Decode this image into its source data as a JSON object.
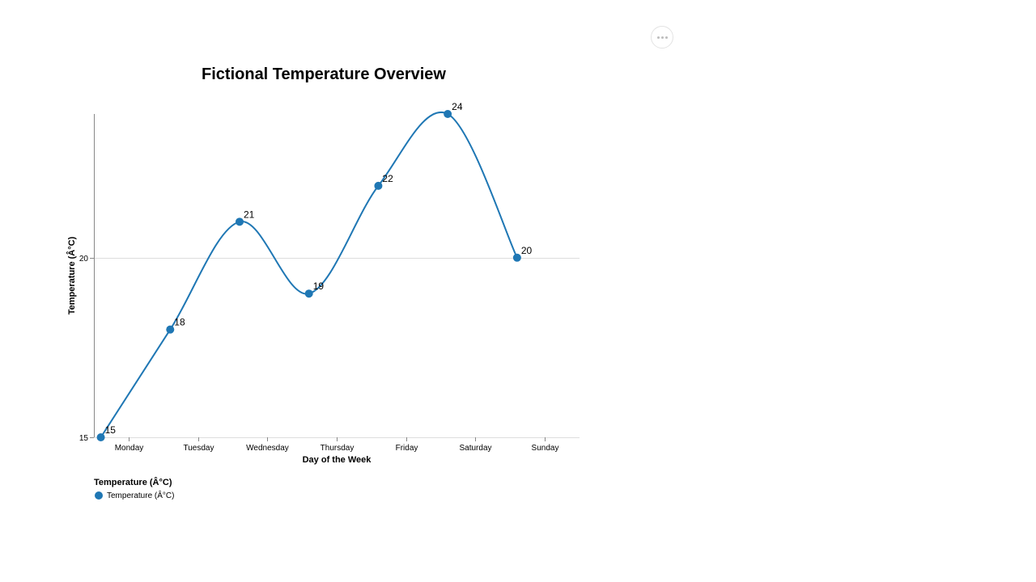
{
  "menu": {
    "icon": "more-horizontal-icon"
  },
  "chart_data": {
    "type": "line",
    "title": "Fictional Temperature Overview",
    "xlabel": "Day of the Week",
    "ylabel": "Temperature (Â°C)",
    "categories": [
      "Monday",
      "Tuesday",
      "Wednesday",
      "Thursday",
      "Friday",
      "Saturday",
      "Sunday"
    ],
    "series": [
      {
        "name": "Temperature (Â°C)",
        "values": [
          15,
          18,
          21,
          19,
          22,
          24,
          20
        ],
        "color": "#1f77b4"
      }
    ],
    "y_ticks": [
      15,
      20
    ],
    "ylim": [
      15,
      24
    ],
    "grid": true,
    "interpolation": "smooth",
    "legend": {
      "title": "Temperature (Â°C)",
      "position": "bottom-left"
    }
  }
}
